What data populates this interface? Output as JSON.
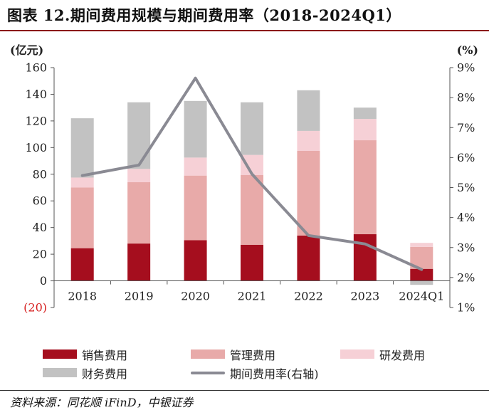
{
  "title": "图表 12.期间费用规模与期间费用率（2018-2024Q1）",
  "source": "资料来源：同花顺 iFinD，中银证券",
  "colors": {
    "sales": "#a50e1e",
    "admin": "#e8aaa9",
    "rd": "#f6d0d6",
    "finance": "#c2c2c2",
    "rate": "#8a8a93",
    "negative_tick": "#d61e1e",
    "title_rule": "#8b0f0f"
  },
  "legend": [
    {
      "key": "sales",
      "label": "销售费用",
      "kind": "bar"
    },
    {
      "key": "admin",
      "label": "管理费用",
      "kind": "bar"
    },
    {
      "key": "rd",
      "label": "研发费用",
      "kind": "bar"
    },
    {
      "key": "finance",
      "label": "财务费用",
      "kind": "bar"
    },
    {
      "key": "rate",
      "label": "期间费用率(右轴)",
      "kind": "line"
    }
  ],
  "chart_data": {
    "type": "bar",
    "stacked": true,
    "categories": [
      "2018",
      "2019",
      "2020",
      "2021",
      "2022",
      "2023",
      "2024Q1"
    ],
    "series": [
      {
        "name": "销售费用",
        "key": "sales",
        "values": [
          24.5,
          28,
          30.5,
          27,
          34,
          35,
          9
        ]
      },
      {
        "name": "管理费用",
        "key": "admin",
        "values": [
          45.5,
          46,
          48.5,
          52.5,
          63.5,
          70.5,
          16.5
        ]
      },
      {
        "name": "研发费用",
        "key": "rd",
        "values": [
          7.5,
          10,
          13.5,
          15,
          15,
          16,
          3
        ]
      },
      {
        "name": "财务费用",
        "key": "finance",
        "values": [
          44.5,
          50,
          42.5,
          39.5,
          30.5,
          8.5,
          -3
        ]
      },
      {
        "name": "期间费用率(右轴)",
        "key": "rate",
        "type": "line",
        "axis": "right",
        "values": [
          5.4,
          5.75,
          8.65,
          5.45,
          3.4,
          3.12,
          2.27
        ]
      }
    ],
    "left_axis": {
      "label": "(亿元)",
      "ylim": [
        -20,
        160
      ],
      "ticks": [
        -20,
        0,
        20,
        40,
        60,
        80,
        100,
        120,
        140,
        160
      ],
      "tick_labels": [
        "(20)",
        "0",
        "20",
        "40",
        "60",
        "80",
        "100",
        "120",
        "140",
        "160"
      ]
    },
    "right_axis": {
      "label": "(%)",
      "ylim": [
        1,
        9
      ],
      "ticks": [
        1,
        2,
        3,
        4,
        5,
        6,
        7,
        8,
        9
      ],
      "tick_labels": [
        "1%",
        "2%",
        "3%",
        "4%",
        "5%",
        "6%",
        "7%",
        "8%",
        "9%"
      ]
    },
    "grid": false,
    "legend_position": "bottom"
  }
}
